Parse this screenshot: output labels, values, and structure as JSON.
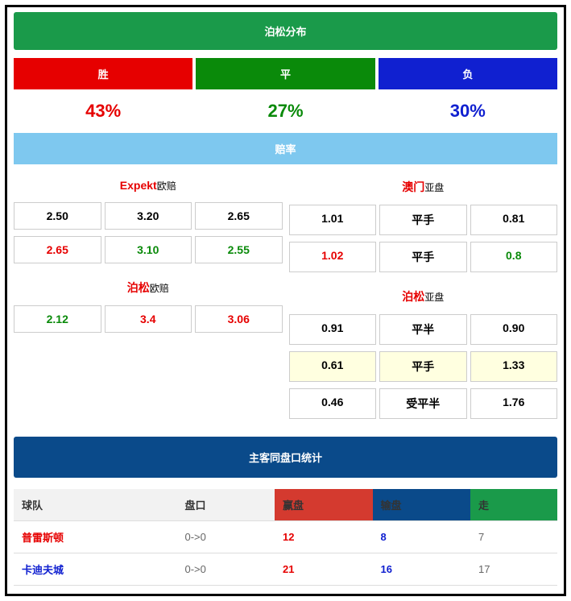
{
  "colors": {
    "green_header": "#1a9a4a",
    "red": "#e60000",
    "green": "#0a8a0a",
    "blue": "#1020d0",
    "wdl_win_bg": "#e60000",
    "wdl_draw_bg": "#0a8a0a",
    "wdl_lose_bg": "#1020d0",
    "lightblue": "#7ec8ef",
    "navy": "#0a4a8a",
    "th_gray": "#f2f2f2",
    "th_red": "#d43a2f",
    "th_green": "#1a9a4a",
    "highlight": "#ffffe0"
  },
  "poisson": {
    "title": "泊松分布",
    "wdl": {
      "win": {
        "label": "胜",
        "pct": "43%"
      },
      "draw": {
        "label": "平",
        "pct": "27%"
      },
      "lose": {
        "label": "负",
        "pct": "30%"
      }
    }
  },
  "odds": {
    "title": "赔率",
    "left": {
      "prov1": {
        "name": "Expekt",
        "suffix": "欧赔",
        "rows": [
          {
            "cells": [
              "2.50",
              "3.20",
              "2.65"
            ],
            "colors": [
              "black",
              "black",
              "black"
            ]
          },
          {
            "cells": [
              "2.65",
              "3.10",
              "2.55"
            ],
            "colors": [
              "red",
              "green",
              "green"
            ]
          }
        ]
      },
      "prov2": {
        "name": "泊松",
        "suffix": "欧赔",
        "rows": [
          {
            "cells": [
              "2.12",
              "3.4",
              "3.06"
            ],
            "colors": [
              "green",
              "red",
              "red"
            ]
          }
        ]
      }
    },
    "right": {
      "prov1": {
        "name": "澳门",
        "suffix": "亚盘",
        "rows": [
          {
            "cells": [
              "1.01",
              "平手",
              "0.81"
            ],
            "colors": [
              "black",
              "black",
              "black"
            ]
          },
          {
            "cells": [
              "1.02",
              "平手",
              "0.8"
            ],
            "colors": [
              "red",
              "black",
              "green"
            ]
          }
        ]
      },
      "prov2": {
        "name": "泊松",
        "suffix": "亚盘",
        "rows": [
          {
            "cells": [
              "0.91",
              "平半",
              "0.90"
            ],
            "colors": [
              "black",
              "black",
              "black"
            ]
          },
          {
            "cells": [
              "0.61",
              "平手",
              "1.33"
            ],
            "colors": [
              "black",
              "black",
              "black"
            ],
            "highlight": true
          },
          {
            "cells": [
              "0.46",
              "受平半",
              "1.76"
            ],
            "colors": [
              "black",
              "black",
              "black"
            ]
          }
        ]
      }
    }
  },
  "stats": {
    "title": "主客同盘口统计",
    "headers": {
      "team": "球队",
      "handicap": "盘口",
      "win": "赢盘",
      "lose": "输盘",
      "draw": "走"
    },
    "rows": [
      {
        "team": "普雷斯顿",
        "team_color": "red",
        "handicap": "0->0",
        "win": "12",
        "lose": "8",
        "draw": "7"
      },
      {
        "team": "卡迪夫城",
        "team_color": "blue",
        "handicap": "0->0",
        "win": "21",
        "lose": "16",
        "draw": "17"
      }
    ]
  }
}
